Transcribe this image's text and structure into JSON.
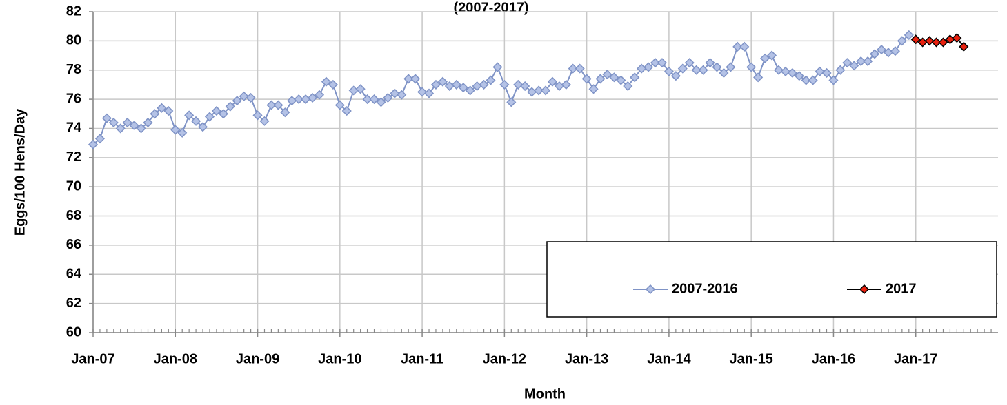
{
  "chart_data": {
    "type": "line",
    "title": "(2007-2017)",
    "x_label": "Month",
    "y_label": "Eggs/100 Hens/Day",
    "categories": [
      "Jan-07",
      null,
      null,
      null,
      null,
      null,
      null,
      null,
      null,
      null,
      null,
      null,
      "Jan-08",
      null,
      null,
      null,
      null,
      null,
      null,
      null,
      null,
      null,
      null,
      null,
      "Jan-09",
      null,
      null,
      null,
      null,
      null,
      null,
      null,
      null,
      null,
      null,
      null,
      "Jan-10",
      null,
      null,
      null,
      null,
      null,
      null,
      null,
      null,
      null,
      null,
      null,
      "Jan-11",
      null,
      null,
      null,
      null,
      null,
      null,
      null,
      null,
      null,
      null,
      null,
      "Jan-12",
      null,
      null,
      null,
      null,
      null,
      null,
      null,
      null,
      null,
      null,
      null,
      "Jan-13",
      null,
      null,
      null,
      null,
      null,
      null,
      null,
      null,
      null,
      null,
      null,
      "Jan-14",
      null,
      null,
      null,
      null,
      null,
      null,
      null,
      null,
      null,
      null,
      null,
      "Jan-15",
      null,
      null,
      null,
      null,
      null,
      null,
      null,
      null,
      null,
      null,
      null,
      "Jan-16",
      null,
      null,
      null,
      null,
      null,
      null,
      null,
      null,
      null,
      null,
      null,
      "Jan-17",
      null,
      null,
      null,
      null,
      null,
      null,
      null,
      null,
      null,
      null,
      null
    ],
    "series": [
      {
        "name": "2007-2016",
        "color": "#7f93c6",
        "marker_fill": "#b4c2e6",
        "values": [
          72.9,
          73.3,
          74.7,
          74.4,
          74.0,
          74.4,
          74.2,
          74.0,
          74.4,
          75.0,
          75.4,
          75.2,
          73.9,
          73.7,
          74.9,
          74.5,
          74.1,
          74.8,
          75.2,
          75.0,
          75.5,
          75.9,
          76.2,
          76.1,
          74.9,
          74.5,
          75.6,
          75.6,
          75.1,
          75.9,
          76.0,
          76.0,
          76.1,
          76.3,
          77.2,
          77.0,
          75.6,
          75.2,
          76.6,
          76.7,
          76.0,
          76.0,
          75.8,
          76.1,
          76.4,
          76.3,
          77.4,
          77.4,
          76.5,
          76.4,
          77.0,
          77.2,
          76.9,
          77.0,
          76.8,
          76.6,
          76.9,
          77.0,
          77.3,
          78.2,
          77.0,
          75.8,
          77.0,
          76.9,
          76.5,
          76.6,
          76.6,
          77.2,
          76.9,
          77.0,
          78.1,
          78.1,
          77.4,
          76.7,
          77.4,
          77.7,
          77.5,
          77.3,
          76.9,
          77.5,
          78.1,
          78.2,
          78.5,
          78.5,
          77.9,
          77.6,
          78.1,
          78.5,
          78.0,
          78.0,
          78.5,
          78.2,
          77.8,
          78.2,
          79.6,
          79.6,
          78.2,
          77.5,
          78.8,
          79.0,
          78.0,
          77.9,
          77.8,
          77.6,
          77.3,
          77.3,
          77.9,
          77.8,
          77.3,
          78.0,
          78.5,
          78.3,
          78.6,
          78.6,
          79.1,
          79.4,
          79.2,
          79.3,
          80.0,
          80.4,
          null,
          null,
          null,
          null,
          null,
          null,
          null,
          null,
          null,
          null,
          null,
          null
        ]
      },
      {
        "name": "2017",
        "color": "#000000",
        "marker_fill": "#e8200e",
        "values": [
          null,
          null,
          null,
          null,
          null,
          null,
          null,
          null,
          null,
          null,
          null,
          null,
          null,
          null,
          null,
          null,
          null,
          null,
          null,
          null,
          null,
          null,
          null,
          null,
          null,
          null,
          null,
          null,
          null,
          null,
          null,
          null,
          null,
          null,
          null,
          null,
          null,
          null,
          null,
          null,
          null,
          null,
          null,
          null,
          null,
          null,
          null,
          null,
          null,
          null,
          null,
          null,
          null,
          null,
          null,
          null,
          null,
          null,
          null,
          null,
          null,
          null,
          null,
          null,
          null,
          null,
          null,
          null,
          null,
          null,
          null,
          null,
          null,
          null,
          null,
          null,
          null,
          null,
          null,
          null,
          null,
          null,
          null,
          null,
          null,
          null,
          null,
          null,
          null,
          null,
          null,
          null,
          null,
          null,
          null,
          null,
          null,
          null,
          null,
          null,
          null,
          null,
          null,
          null,
          null,
          null,
          null,
          null,
          null,
          null,
          null,
          null,
          null,
          null,
          null,
          null,
          null,
          null,
          null,
          null,
          80.1,
          79.9,
          80.0,
          79.9,
          79.9,
          80.1,
          80.2,
          79.6,
          null,
          null,
          null,
          null
        ]
      }
    ],
    "ylim": [
      60,
      82
    ],
    "yticks": [
      60,
      62,
      64,
      66,
      68,
      70,
      72,
      74,
      76,
      78,
      80,
      82
    ],
    "grid": true,
    "legend": "lower right"
  }
}
